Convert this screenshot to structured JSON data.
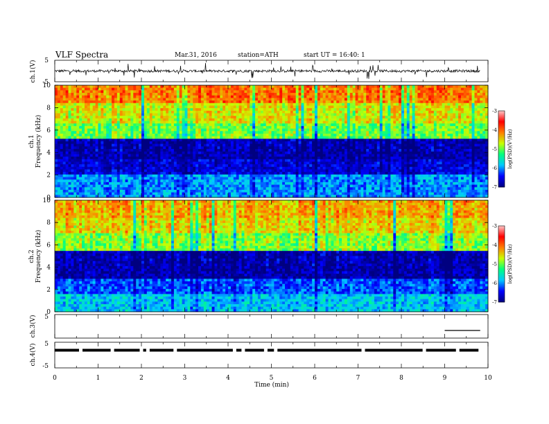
{
  "header": {
    "title": "VLF  Spectra",
    "date": "Mar.31, 2016",
    "station": "station=ATH",
    "start_time": "start  UT  =   16:40: 1"
  },
  "chart_data": [
    {
      "type": "line",
      "panel": "ch1-waveform",
      "ylabel": "ch.1(V)",
      "ylim": [
        -5,
        5
      ],
      "yticks": [
        "5",
        "-5"
      ],
      "x_range_min": [
        0,
        9.82
      ],
      "baseline_v": 0.0,
      "series_color": "#000000"
    },
    {
      "type": "heatmap",
      "panel": "ch1-spectrogram",
      "ylabel_channel": "ch.1",
      "ylabel": "Frequency  (kHz)",
      "ylim": [
        0,
        10
      ],
      "yticks": [
        "0",
        "2",
        "4",
        "6",
        "8",
        "10"
      ],
      "colorbar": {
        "label": "log(PSD)(V²/Hz)",
        "range": [
          -7,
          -3
        ],
        "ticks": [
          "-7",
          "-6",
          "-5",
          "-4",
          "-3"
        ],
        "colormap": [
          "#000080",
          "#0000ff",
          "#00c8ff",
          "#00ff80",
          "#c8ff00",
          "#ff8000",
          "#ff0000",
          "#ffc8c8"
        ]
      },
      "bands": [
        {
          "f_low": 0.0,
          "f_high": 2.0,
          "level": -6.0
        },
        {
          "f_low": 2.0,
          "f_high": 3.3,
          "level": -6.6
        },
        {
          "f_low": 3.3,
          "f_high": 5.2,
          "level": -6.8
        },
        {
          "f_low": 5.2,
          "f_high": 6.6,
          "level": -5.0
        },
        {
          "f_low": 6.6,
          "f_high": 8.3,
          "level": -4.6
        },
        {
          "f_low": 8.3,
          "f_high": 10.0,
          "level": -4.1
        }
      ]
    },
    {
      "type": "heatmap",
      "panel": "ch2-spectrogram",
      "ylabel_channel": "ch.2",
      "ylabel": "Frequency  (kHz)",
      "ylim": [
        0,
        10
      ],
      "yticks": [
        "0",
        "2",
        "4",
        "6",
        "8",
        "10"
      ],
      "colorbar": {
        "label": "log(PSD)(V²/Hz)",
        "range": [
          -7,
          -3
        ],
        "ticks": [
          "-7",
          "-6",
          "-5",
          "-4",
          "-3"
        ],
        "colormap": [
          "#000080",
          "#0000ff",
          "#00c8ff",
          "#00ff80",
          "#c8ff00",
          "#ff8000",
          "#ff0000",
          "#ffc8c8"
        ]
      },
      "bands": [
        {
          "f_low": 0.0,
          "f_high": 1.5,
          "level": -5.8
        },
        {
          "f_low": 1.5,
          "f_high": 3.0,
          "level": -6.2
        },
        {
          "f_low": 3.0,
          "f_high": 5.5,
          "level": -6.8
        },
        {
          "f_low": 5.5,
          "f_high": 7.0,
          "level": -4.9
        },
        {
          "f_low": 7.0,
          "f_high": 8.5,
          "level": -4.5
        },
        {
          "f_low": 8.5,
          "f_high": 10.0,
          "level": -4.3
        }
      ]
    },
    {
      "type": "line",
      "panel": "ch3-waveform",
      "ylabel": "ch.3(V)",
      "ylim": [
        -5,
        5
      ],
      "yticks": [
        "5"
      ],
      "trace_x_range_min": [
        9.0,
        9.82
      ],
      "trace_level_v": 0.0
    },
    {
      "type": "line",
      "panel": "ch4-waveform",
      "ylabel": "ch.4(V)",
      "ylim": [
        -5,
        5
      ],
      "yticks": [
        "5",
        "-5"
      ],
      "trace_level_v": 0.0,
      "gaps_min": [
        0.6,
        1.33,
        2.0,
        2.15,
        2.78,
        4.15,
        4.35,
        4.87,
        5.1,
        7.12,
        8.53,
        9.3
      ]
    }
  ],
  "x_axis": {
    "label": "Time  (min)",
    "ticks": [
      "0",
      "1",
      "2",
      "3",
      "4",
      "5",
      "6",
      "7",
      "8",
      "9",
      "10"
    ],
    "range": [
      0,
      10
    ]
  }
}
